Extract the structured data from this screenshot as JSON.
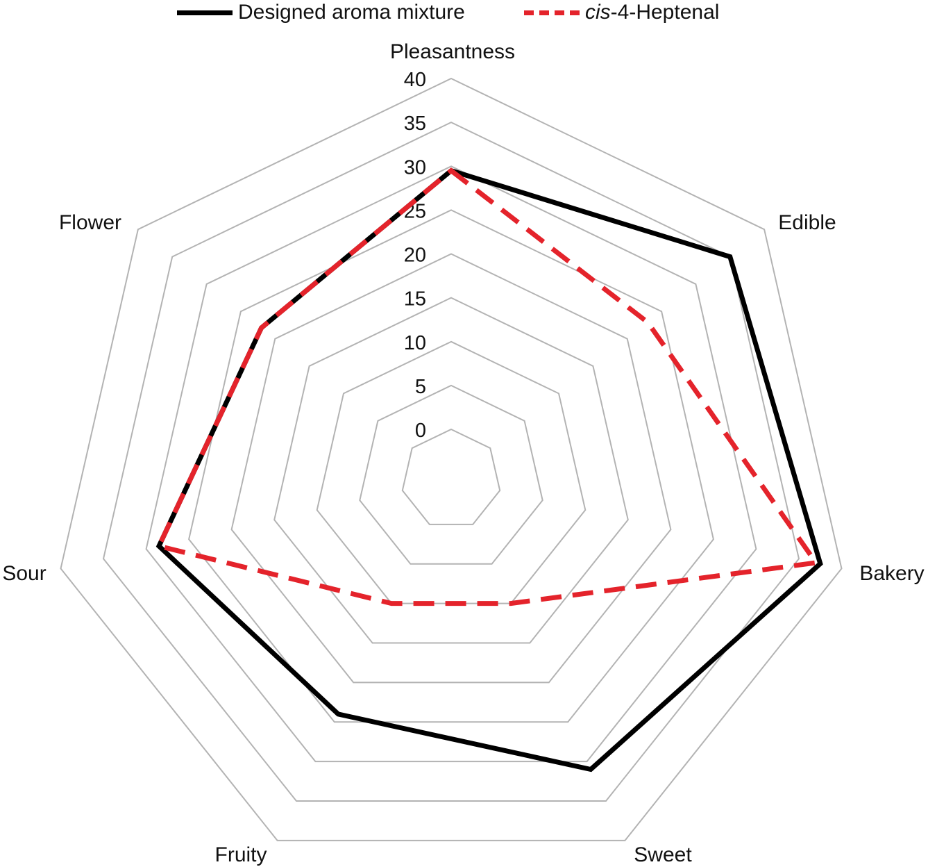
{
  "chart_data": {
    "type": "radar",
    "categories": [
      "Pleasantness",
      "Edible",
      "Bakery",
      "Sweet",
      "Fruity",
      "Sour",
      "Flower"
    ],
    "rlim": [
      0,
      40
    ],
    "ticks": [
      0,
      5,
      10,
      15,
      20,
      25,
      30,
      35,
      40
    ],
    "tick_labels": [
      "0",
      "5",
      "10",
      "15",
      "20",
      "25",
      "30",
      "35",
      "40"
    ],
    "grid": true,
    "legend_position": "top",
    "series": [
      {
        "name": "Designed aroma mixture",
        "values": [
          29.5,
          35.0,
          37.5,
          31.0,
          24.0,
          28.5,
          22.0
        ],
        "color": "#000000",
        "style": "solid"
      },
      {
        "name_parts": [
          "cis",
          "-4-Heptenal"
        ],
        "values": [
          29.5,
          23.0,
          37.0,
          10.0,
          10.0,
          28.5,
          22.0
        ],
        "color": "#e4232b",
        "style": "dashed"
      }
    ]
  }
}
